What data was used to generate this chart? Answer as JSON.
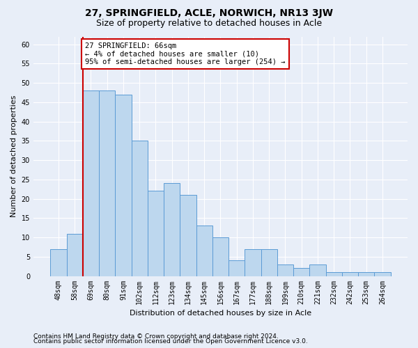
{
  "title": "27, SPRINGFIELD, ACLE, NORWICH, NR13 3JW",
  "subtitle": "Size of property relative to detached houses in Acle",
  "xlabel": "Distribution of detached houses by size in Acle",
  "ylabel": "Number of detached properties",
  "categories": [
    "48sqm",
    "58sqm",
    "69sqm",
    "80sqm",
    "91sqm",
    "102sqm",
    "112sqm",
    "123sqm",
    "134sqm",
    "145sqm",
    "156sqm",
    "167sqm",
    "177sqm",
    "188sqm",
    "199sqm",
    "210sqm",
    "221sqm",
    "232sqm",
    "242sqm",
    "253sqm",
    "264sqm"
  ],
  "values": [
    7,
    11,
    48,
    48,
    47,
    35,
    22,
    24,
    21,
    13,
    10,
    4,
    7,
    7,
    3,
    2,
    3,
    1,
    1,
    1,
    1
  ],
  "bar_color": "#bdd7ee",
  "bar_edge_color": "#5b9bd5",
  "vline_color": "#cc0000",
  "annotation_text": "27 SPRINGFIELD: 66sqm\n← 4% of detached houses are smaller (10)\n95% of semi-detached houses are larger (254) →",
  "annotation_box_color": "#ffffff",
  "annotation_box_edge_color": "#cc0000",
  "ylim": [
    0,
    62
  ],
  "yticks": [
    0,
    5,
    10,
    15,
    20,
    25,
    30,
    35,
    40,
    45,
    50,
    55,
    60
  ],
  "footer1": "Contains HM Land Registry data © Crown copyright and database right 2024.",
  "footer2": "Contains public sector information licensed under the Open Government Licence v3.0.",
  "background_color": "#e8eef8",
  "grid_color": "#ffffff",
  "title_fontsize": 10,
  "subtitle_fontsize": 9,
  "axis_label_fontsize": 8,
  "tick_fontsize": 7,
  "annotation_fontsize": 7.5,
  "footer_fontsize": 6.5
}
